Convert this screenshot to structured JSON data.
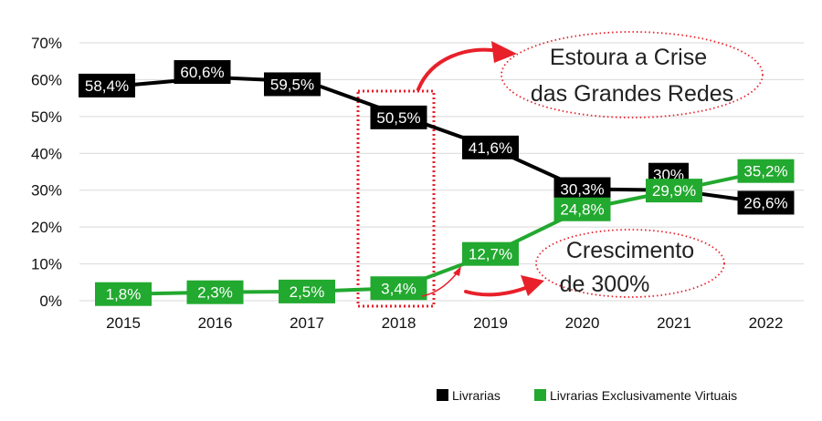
{
  "chart_data": {
    "type": "line",
    "categories": [
      "2015",
      "2016",
      "2017",
      "2018",
      "2019",
      "2020",
      "2021",
      "2022"
    ],
    "ylim": [
      0,
      70
    ],
    "yticks": [
      "0%",
      "10%",
      "20%",
      "30%",
      "40%",
      "50%",
      "60%",
      "70%"
    ],
    "grid": true,
    "legend_position": "bottom-right",
    "series": [
      {
        "name": "Livrarias",
        "color": "#000000",
        "values": [
          58.4,
          60.6,
          59.5,
          50.5,
          41.6,
          30.3,
          30.0,
          26.6
        ],
        "labels": [
          "58,4%",
          "60,6%",
          "59,5%",
          "50,5%",
          "41,6%",
          "30,3%",
          "30%",
          "26,6%"
        ]
      },
      {
        "name": "Livrarias Exclusivamente Virtuais",
        "color": "#22a92f",
        "values": [
          1.8,
          2.3,
          2.5,
          3.4,
          12.7,
          24.8,
          29.9,
          35.2
        ],
        "labels": [
          "1,8%",
          "2,3%",
          "2,5%",
          "3,4%",
          "12,7%",
          "24,8%",
          "29,9%",
          "35,2%"
        ]
      }
    ],
    "annotations": [
      {
        "lines": [
          "Estoura a Crise",
          "das Grandes Redes"
        ],
        "color": "#e8202a"
      },
      {
        "lines": [
          "Crescimento",
          "de 300%"
        ],
        "color": "#e8202a"
      }
    ],
    "highlight_category": "2018"
  }
}
